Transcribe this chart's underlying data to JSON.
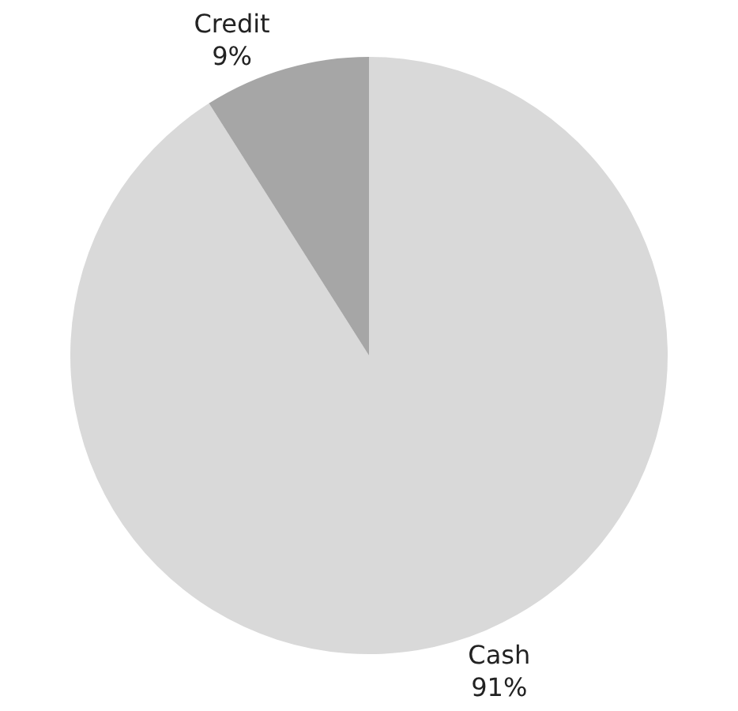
{
  "chart_data": {
    "type": "pie",
    "categories": [
      "Cash",
      "Credit"
    ],
    "values": [
      91,
      9
    ],
    "value_labels": [
      "91%",
      "9%"
    ],
    "colors": [
      "#d9d9d9",
      "#a6a6a6"
    ],
    "legend": false
  }
}
